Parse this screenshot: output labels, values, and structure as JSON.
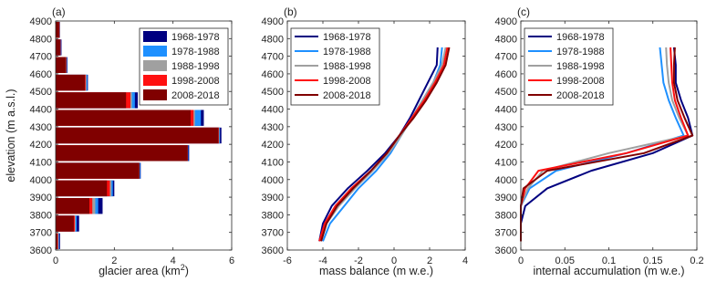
{
  "colors": {
    "1968-1978": "#000080",
    "1978-1988": "#1e90ff",
    "1988-1998": "#a0a0a0",
    "1998-2008": "#ff1010",
    "2008-2018": "#800000"
  },
  "chart_data": [
    {
      "type": "bar",
      "orientation": "horizontal",
      "panel_label": "(a)",
      "xlabel": "glacier area (km",
      "xlabel_sup": "2",
      "xlabel_end": ")",
      "ylabel": "elevation (m a.s.l.)",
      "xlim": [
        0,
        6
      ],
      "ylim": [
        3600,
        4900
      ],
      "xticks": [
        "0",
        "2",
        "4",
        "6"
      ],
      "yticks": [
        "3600",
        "3700",
        "3800",
        "3900",
        "4000",
        "4100",
        "4200",
        "4300",
        "4400",
        "4500",
        "4600",
        "4700",
        "4800",
        "4900"
      ],
      "legend_position": "top-right",
      "bin_width": 100,
      "categories": [
        3650,
        3750,
        3850,
        3950,
        4050,
        4150,
        4250,
        4350,
        4450,
        4550,
        4650,
        4750,
        4850
      ],
      "series": [
        {
          "name": "1968-1978",
          "values": [
            0.15,
            0.8,
            1.6,
            2.0,
            2.9,
            4.55,
            5.65,
            5.05,
            2.8,
            1.1,
            0.4,
            0.2,
            0.15
          ]
        },
        {
          "name": "1978-1988",
          "values": [
            0.12,
            0.72,
            1.45,
            1.95,
            2.88,
            4.52,
            5.6,
            4.95,
            2.7,
            1.08,
            0.38,
            0.18,
            0.14
          ]
        },
        {
          "name": "1988-1998",
          "values": [
            0.1,
            0.68,
            1.35,
            1.9,
            2.86,
            4.5,
            5.58,
            4.75,
            2.6,
            1.05,
            0.37,
            0.17,
            0.14
          ]
        },
        {
          "name": "1998-2008",
          "values": [
            0.08,
            0.65,
            1.25,
            1.85,
            2.85,
            4.5,
            5.56,
            4.7,
            2.55,
            1.02,
            0.36,
            0.17,
            0.13
          ]
        },
        {
          "name": "2008-2018",
          "values": [
            0.06,
            0.62,
            1.15,
            1.75,
            2.85,
            4.5,
            5.55,
            4.6,
            2.4,
            1.0,
            0.35,
            0.16,
            0.12
          ]
        }
      ]
    },
    {
      "type": "line",
      "panel_label": "(b)",
      "xlabel": "mass balance (m w.e.)",
      "xlim": [
        -6,
        4
      ],
      "ylim": [
        3600,
        4900
      ],
      "xticks": [
        "-6",
        "-4",
        "-2",
        "0",
        "2",
        "4"
      ],
      "yticks": [
        "3600",
        "3700",
        "3800",
        "3900",
        "4000",
        "4100",
        "4200",
        "4300",
        "4400",
        "4500",
        "4600",
        "4700",
        "4800",
        "4900"
      ],
      "legend_position": "top-left",
      "series": [
        {
          "name": "1968-1978",
          "x": [
            -4.2,
            -4.0,
            -3.5,
            -2.6,
            -1.5,
            -0.5,
            0.3,
            0.9,
            1.4,
            1.9,
            2.4,
            2.45
          ],
          "y": [
            3650,
            3750,
            3850,
            3950,
            4050,
            4150,
            4250,
            4350,
            4450,
            4550,
            4650,
            4750
          ]
        },
        {
          "name": "1978-1988",
          "x": [
            -4.0,
            -3.6,
            -2.8,
            -2.0,
            -1.0,
            -0.2,
            0.4,
            1.0,
            1.6,
            2.2,
            2.6,
            2.7
          ],
          "y": [
            3650,
            3750,
            3850,
            3950,
            4050,
            4150,
            4250,
            4350,
            4450,
            4550,
            4650,
            4750
          ]
        },
        {
          "name": "1988-1998",
          "x": [
            -4.1,
            -3.8,
            -3.1,
            -2.2,
            -1.2,
            -0.3,
            0.4,
            1.0,
            1.6,
            2.2,
            2.7,
            2.9
          ],
          "y": [
            3650,
            3750,
            3850,
            3950,
            4050,
            4150,
            4250,
            4350,
            4450,
            4550,
            4650,
            4750
          ]
        },
        {
          "name": "1998-2008",
          "x": [
            -4.2,
            -3.9,
            -3.3,
            -2.4,
            -1.3,
            -0.4,
            0.3,
            1.0,
            1.7,
            2.3,
            2.8,
            3.0
          ],
          "y": [
            3650,
            3750,
            3850,
            3950,
            4050,
            4150,
            4250,
            4350,
            4450,
            4550,
            4650,
            4750
          ]
        },
        {
          "name": "2008-2018",
          "x": [
            -4.1,
            -3.8,
            -3.2,
            -2.3,
            -1.3,
            -0.4,
            0.3,
            1.1,
            1.8,
            2.4,
            2.9,
            3.1
          ],
          "y": [
            3650,
            3750,
            3850,
            3950,
            4050,
            4150,
            4250,
            4350,
            4450,
            4550,
            4650,
            4750
          ]
        }
      ]
    },
    {
      "type": "line",
      "panel_label": "(c)",
      "xlabel": "internal accumulation (m w.e.)",
      "xlim": [
        0,
        0.2
      ],
      "ylim": [
        3600,
        4900
      ],
      "xticks": [
        "0",
        "0.05",
        "0.1",
        "0.15",
        "0.2"
      ],
      "yticks": [
        "3600",
        "3700",
        "3800",
        "3900",
        "4000",
        "4100",
        "4200",
        "4300",
        "4400",
        "4500",
        "4600",
        "4700",
        "4800",
        "4900"
      ],
      "legend_position": "top-left",
      "series": [
        {
          "name": "1968-1978",
          "x": [
            0,
            0,
            0.005,
            0.03,
            0.08,
            0.15,
            0.195,
            0.19,
            0.182,
            0.176,
            0.176,
            0.174
          ],
          "y": [
            3650,
            3750,
            3850,
            3950,
            4050,
            4150,
            4250,
            4350,
            4450,
            4550,
            4650,
            4750
          ]
        },
        {
          "name": "1978-1988",
          "x": [
            0,
            0,
            0,
            0.01,
            0.04,
            0.12,
            0.185,
            0.176,
            0.168,
            0.162,
            0.16,
            0.158
          ],
          "y": [
            3650,
            3750,
            3850,
            3950,
            4050,
            4150,
            4250,
            4350,
            4450,
            4550,
            4650,
            4750
          ]
        },
        {
          "name": "1988-1998",
          "x": [
            0,
            0,
            0,
            0.008,
            0.025,
            0.1,
            0.19,
            0.18,
            0.172,
            0.168,
            0.166,
            0.165
          ],
          "y": [
            3650,
            3750,
            3850,
            3950,
            4050,
            4150,
            4250,
            4350,
            4450,
            4550,
            4650,
            4750
          ]
        },
        {
          "name": "1998-2008",
          "x": [
            0,
            0,
            0,
            0.005,
            0.02,
            0.12,
            0.19,
            0.182,
            0.175,
            0.172,
            0.171,
            0.17
          ],
          "y": [
            3650,
            3750,
            3850,
            3950,
            4050,
            4150,
            4250,
            4350,
            4450,
            4550,
            4650,
            4750
          ]
        },
        {
          "name": "2008-2018",
          "x": [
            0,
            0,
            0,
            0.003,
            0.03,
            0.14,
            0.195,
            0.186,
            0.178,
            0.174,
            0.174,
            0.175
          ],
          "y": [
            3650,
            3750,
            3850,
            3950,
            4050,
            4150,
            4250,
            4350,
            4450,
            4550,
            4650,
            4750
          ]
        }
      ]
    }
  ]
}
